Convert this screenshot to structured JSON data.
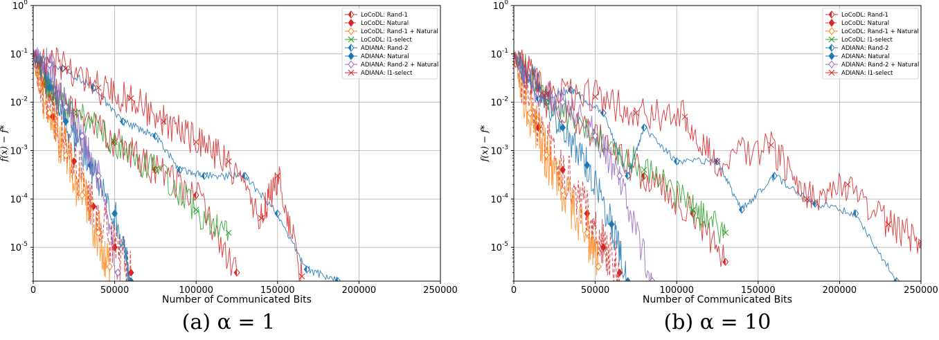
{
  "chart_data": [
    {
      "type": "line",
      "caption": "(a) α = 1",
      "xlabel": "Number of Communicated Bits",
      "ylabel": "f(x) − f*",
      "xlim": [
        0,
        250000
      ],
      "ylim": [
        2e-06,
        1
      ],
      "yscale": "log",
      "grid": true,
      "legend_position": "top-right",
      "x_ticks": [
        "0",
        "50000",
        "100000",
        "150000",
        "200000",
        "250000"
      ],
      "y_ticks": [
        "10^0",
        "10^-1",
        "10^-2",
        "10^-3",
        "10^-4",
        "10^-5"
      ],
      "series": [
        {
          "name": "LoCoDL: Rand-1",
          "color": "#d62728",
          "marker": "diamond-half",
          "x": [
            0,
            10000,
            25000,
            50000,
            75000,
            100000,
            125000
          ],
          "y": [
            0.1,
            0.02,
            0.006,
            0.0015,
            0.0004,
            0.00012,
            3e-06
          ]
        },
        {
          "name": "LoCoDL: Natural",
          "color": "#d62728",
          "marker": "diamond",
          "x": [
            0,
            12000,
            25000,
            37000,
            50000,
            60000
          ],
          "y": [
            0.08,
            0.005,
            0.0006,
            7e-05,
            1e-05,
            3e-06
          ]
        },
        {
          "name": "LoCoDL: Rand-1 + Natural",
          "color": "#ff7f0e",
          "marker": "diamond-open",
          "x": [
            0,
            10000,
            20000,
            30000,
            40000,
            47000
          ],
          "y": [
            0.09,
            0.006,
            0.0008,
            0.00012,
            2e-05,
            4e-06
          ]
        },
        {
          "name": "LoCoDL: l1-select",
          "color": "#2ca02c",
          "marker": "x",
          "x": [
            0,
            10000,
            25000,
            50000,
            75000,
            100000,
            120000
          ],
          "y": [
            0.1,
            0.02,
            0.006,
            0.0015,
            0.0004,
            6e-05,
            2e-05
          ]
        },
        {
          "name": "ADIANA: Rand-2",
          "color": "#1f77b4",
          "marker": "diamond-half",
          "x": [
            0,
            18000,
            37000,
            55000,
            75000,
            90000,
            105000,
            130000,
            150000,
            168000,
            187000
          ],
          "y": [
            0.1,
            0.05,
            0.02,
            0.004,
            0.002,
            0.0004,
            0.0003,
            0.0003,
            5e-05,
            3.5e-06,
            2e-06
          ]
        },
        {
          "name": "ADIANA: Natural",
          "color": "#1f77b4",
          "marker": "diamond",
          "x": [
            0,
            10000,
            20000,
            35000,
            50000,
            60000
          ],
          "y": [
            0.1,
            0.02,
            0.004,
            0.0005,
            5e-05,
            2e-06
          ]
        },
        {
          "name": "ADIANA: Rand-2 + Natural",
          "color": "#9467bd",
          "marker": "diamond-open",
          "x": [
            0,
            10000,
            20000,
            30000,
            40000,
            52000
          ],
          "y": [
            0.1,
            0.06,
            0.008,
            0.002,
            0.0003,
            3e-06
          ]
        },
        {
          "name": "ADIANA: l1-select",
          "color": "#d62728",
          "marker": "x",
          "x": [
            0,
            20000,
            40000,
            60000,
            80000,
            100000,
            120000,
            140000,
            150000,
            165000
          ],
          "y": [
            0.1,
            0.05,
            0.02,
            0.012,
            0.004,
            0.0015,
            0.0006,
            4e-05,
            0.0003,
            2.5e-06
          ]
        }
      ]
    },
    {
      "type": "line",
      "caption": "(b) α = 10",
      "xlabel": "Number of Communicated Bits",
      "ylabel": "f(x) − f*",
      "xlim": [
        0,
        250000
      ],
      "ylim": [
        2e-06,
        1
      ],
      "yscale": "log",
      "grid": true,
      "legend_position": "top-right",
      "x_ticks": [
        "0",
        "50000",
        "100000",
        "150000",
        "200000",
        "250000"
      ],
      "y_ticks": [
        "10^0",
        "10^-1",
        "10^-2",
        "10^-3",
        "10^-4",
        "10^-5"
      ],
      "series": [
        {
          "name": "LoCoDL: Rand-1",
          "color": "#d62728",
          "marker": "diamond-half",
          "x": [
            0,
            20000,
            50000,
            80000,
            110000,
            130000
          ],
          "y": [
            0.1,
            0.01,
            0.002,
            0.0003,
            5e-05,
            5e-06
          ]
        },
        {
          "name": "LoCoDL: Natural",
          "color": "#d62728",
          "marker": "diamond",
          "x": [
            0,
            15000,
            30000,
            45000,
            55000,
            65000
          ],
          "y": [
            0.08,
            0.003,
            0.0004,
            5e-05,
            1e-05,
            3e-06
          ]
        },
        {
          "name": "LoCoDL: Rand-1 + Natural",
          "color": "#ff7f0e",
          "marker": "diamond-open",
          "x": [
            0,
            10000,
            20000,
            30000,
            45000,
            52000
          ],
          "y": [
            0.09,
            0.006,
            0.0008,
            0.00015,
            2e-05,
            4e-06
          ]
        },
        {
          "name": "LoCoDL: l1-select",
          "color": "#2ca02c",
          "marker": "x",
          "x": [
            0,
            20000,
            50000,
            80000,
            110000,
            130000
          ],
          "y": [
            0.1,
            0.01,
            0.002,
            0.0004,
            6e-05,
            2e-05
          ]
        },
        {
          "name": "ADIANA: Rand-2",
          "color": "#1f77b4",
          "marker": "diamond-half",
          "x": [
            0,
            15000,
            35000,
            55000,
            70000,
            80000,
            100000,
            125000,
            140000,
            160000,
            185000,
            210000,
            235000
          ],
          "y": [
            0.1,
            0.012,
            0.018,
            0.006,
            0.0003,
            0.003,
            0.0006,
            0.0006,
            6e-05,
            0.0003,
            8e-05,
            5e-05,
            2e-06
          ]
        },
        {
          "name": "ADIANA: Natural",
          "color": "#1f77b4",
          "marker": "diamond",
          "x": [
            0,
            15000,
            30000,
            45000,
            60000,
            70000
          ],
          "y": [
            0.1,
            0.02,
            0.003,
            0.0005,
            3e-05,
            2e-06
          ]
        },
        {
          "name": "ADIANA: Rand-2 + Natural",
          "color": "#9467bd",
          "marker": "diamond-open",
          "x": [
            0,
            15000,
            30000,
            50000,
            65000,
            85000
          ],
          "y": [
            0.1,
            0.015,
            0.01,
            0.002,
            0.0003,
            2e-06
          ]
        },
        {
          "name": "ADIANA: l1-select",
          "color": "#d62728",
          "marker": "x",
          "x": [
            0,
            20000,
            50000,
            75000,
            105000,
            125000,
            158000,
            180000,
            205000,
            230000,
            250000
          ],
          "y": [
            0.1,
            0.015,
            0.013,
            0.006,
            0.005,
            0.0006,
            0.0013,
            0.0001,
            0.0002,
            3e-05,
            1.3e-05
          ]
        }
      ]
    }
  ]
}
